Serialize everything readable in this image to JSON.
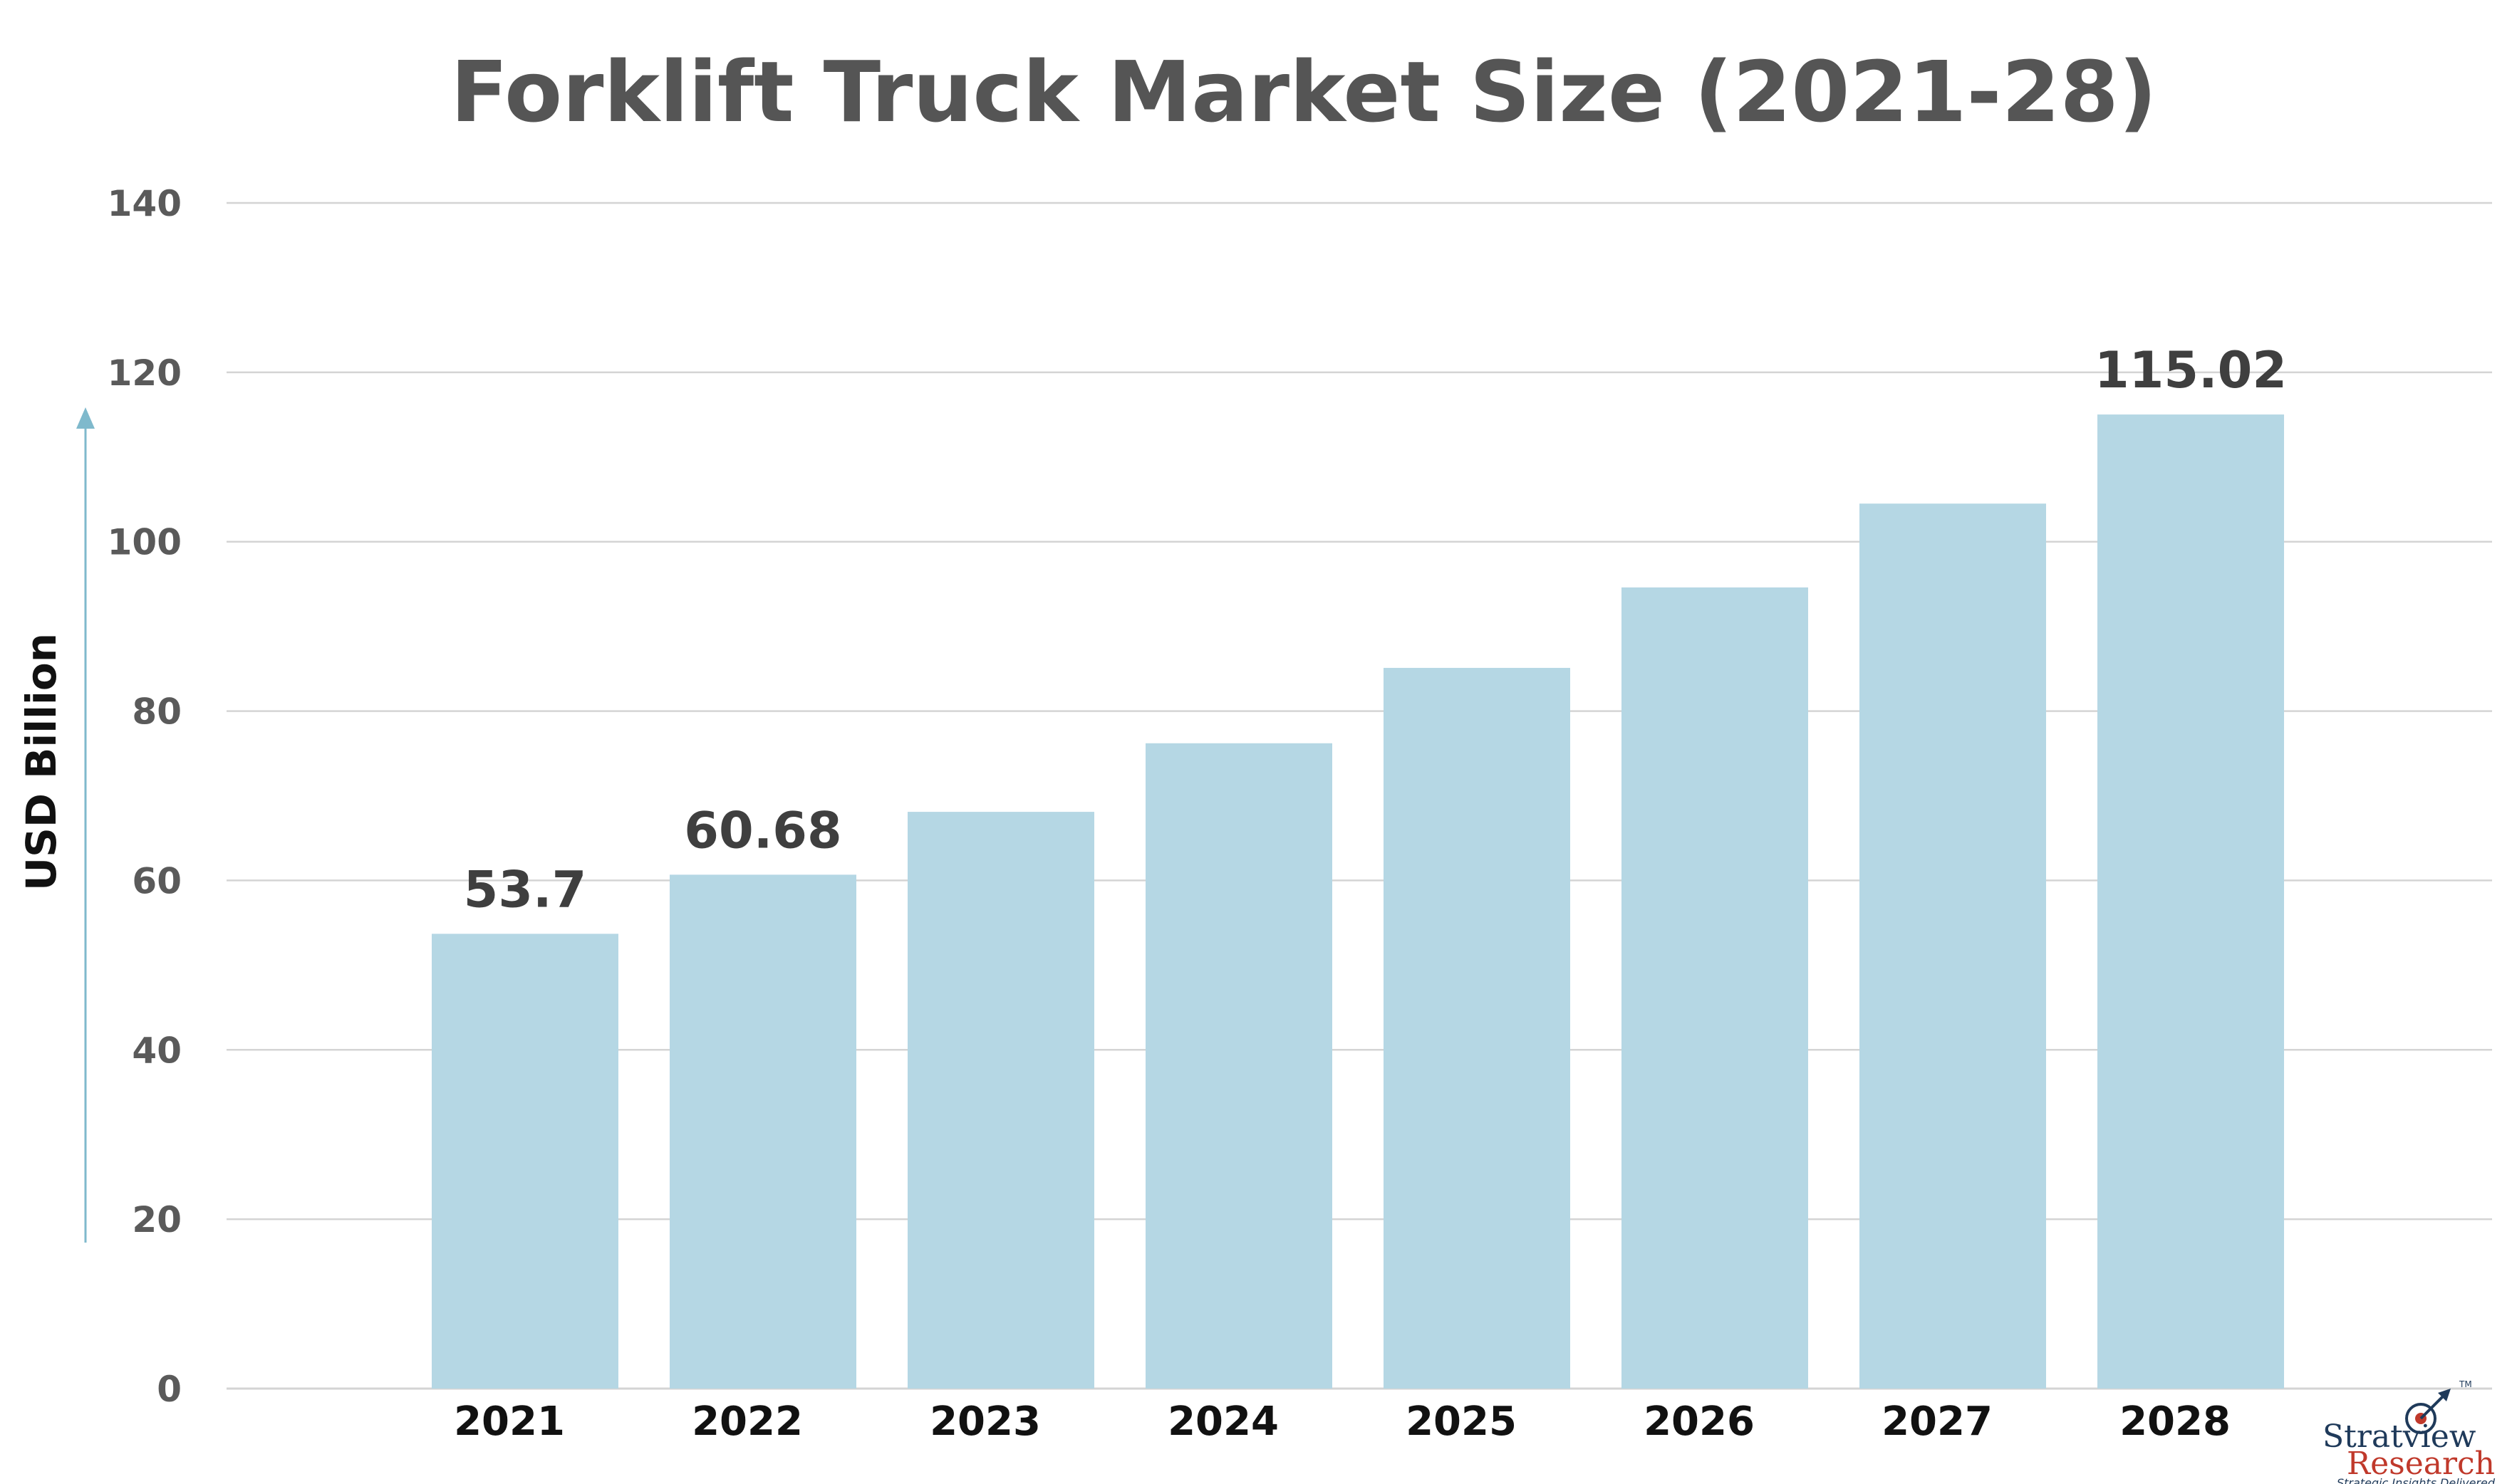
{
  "chart_data": {
    "type": "bar",
    "title": "Forklift Truck Market Size (2021-28)",
    "ylabel": "USD Billion",
    "xlabel": "",
    "categories": [
      "2021",
      "2022",
      "2023",
      "2024",
      "2025",
      "2026",
      "2027",
      "2028"
    ],
    "values": [
      53.7,
      60.68,
      68.1,
      76.2,
      85.1,
      94.6,
      104.5,
      115.02
    ],
    "data_labels": [
      "53.7",
      "60.68",
      "",
      "",
      "",
      "",
      "",
      "115.02"
    ],
    "ylim": [
      0,
      140
    ],
    "yticks": [
      "0",
      "20",
      "40",
      "60",
      "80",
      "100",
      "120",
      "140"
    ],
    "grid": true,
    "legend": "none",
    "bar_color": "#b5d7e4",
    "grid_color": "#d4d4d4",
    "axis_arrow_color": "#7fb9cc"
  },
  "logo": {
    "name": "Stratview",
    "sub": "Research",
    "tagline": "Strategic Insights Delivered",
    "tm": "TM",
    "icon": "target-arrow-icon"
  }
}
